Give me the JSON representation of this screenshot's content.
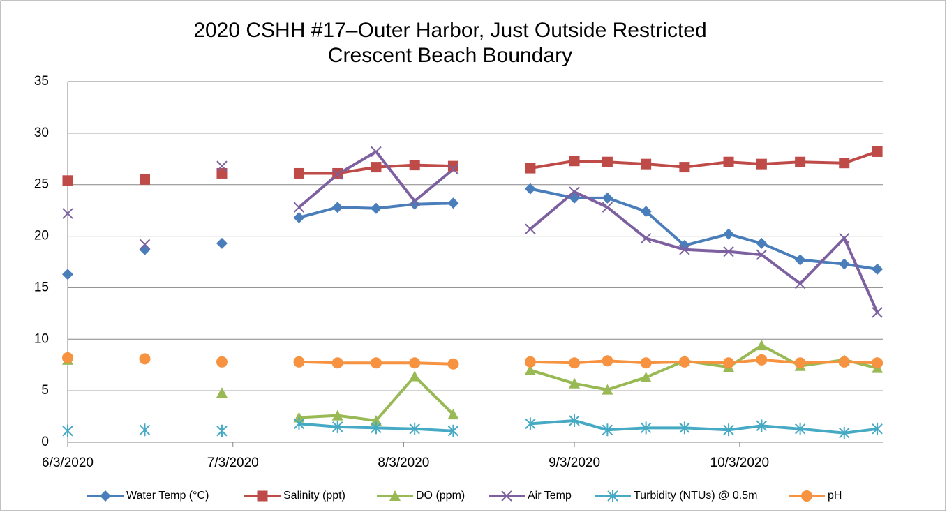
{
  "chart_data": {
    "type": "line",
    "title": [
      "2020 CSHH #17–Outer Harbor, Just Outside Restricted",
      "Crescent Beach Boundary"
    ],
    "x": [
      "2020-06-03",
      "2020-06-10",
      "2020-06-17",
      "2020-06-24",
      "2020-07-01",
      "2020-07-08",
      "2020-07-15",
      "2020-07-22",
      "2020-07-29",
      "2020-08-05",
      "2020-08-12",
      "2020-08-19",
      "2020-08-26",
      "2020-09-03",
      "2020-09-09",
      "2020-09-16",
      "2020-09-23",
      "2020-10-01",
      "2020-10-07",
      "2020-10-14",
      "2020-10-22",
      "2020-10-28"
    ],
    "xlim": [
      "2020-06-03",
      "2020-10-29"
    ],
    "xticks": [
      {
        "value": "2020-06-03",
        "label": "6/3/2020"
      },
      {
        "value": "2020-07-03",
        "label": "7/3/2020"
      },
      {
        "value": "2020-08-03",
        "label": "8/3/2020"
      },
      {
        "value": "2020-09-03",
        "label": "9/3/2020"
      },
      {
        "value": "2020-10-03",
        "label": "10/3/2020"
      }
    ],
    "ylim": [
      0,
      35
    ],
    "yticks": [
      0,
      5,
      10,
      15,
      20,
      25,
      30,
      35
    ],
    "grid": true,
    "legend": "bottom",
    "series": [
      {
        "name": "Water Temp (°C)",
        "color": "#4a7ebb",
        "marker": "diamond",
        "values": [
          16.3,
          null,
          18.7,
          null,
          19.3,
          null,
          21.8,
          22.8,
          22.7,
          23.1,
          23.2,
          null,
          24.6,
          23.7,
          23.7,
          22.4,
          19.1,
          20.2,
          19.3,
          17.7,
          17.3,
          16.8
        ]
      },
      {
        "name": "Salinity (ppt)",
        "color": "#be4b48",
        "marker": "square",
        "values": [
          25.4,
          null,
          25.5,
          null,
          26.1,
          null,
          26.1,
          26.1,
          26.7,
          26.9,
          26.8,
          null,
          26.6,
          27.3,
          27.2,
          27.0,
          26.7,
          27.2,
          27.0,
          27.2,
          27.1,
          28.2
        ]
      },
      {
        "name": "DO (ppm)",
        "color": "#98b954",
        "marker": "triangle",
        "values": [
          8.0,
          null,
          null,
          null,
          4.8,
          null,
          2.4,
          2.6,
          2.1,
          6.4,
          2.7,
          null,
          7.0,
          5.7,
          5.1,
          6.3,
          7.9,
          7.3,
          9.4,
          7.4,
          8.0,
          7.2
        ]
      },
      {
        "name": "Air Temp",
        "color": "#7d60a0",
        "marker": "x",
        "values": [
          22.2,
          null,
          19.2,
          null,
          26.8,
          null,
          22.8,
          26.0,
          28.2,
          23.4,
          26.5,
          null,
          20.7,
          24.3,
          22.8,
          19.8,
          18.7,
          18.5,
          18.2,
          15.4,
          19.8,
          12.6
        ]
      },
      {
        "name": "Turbidity (NTUs) @ 0.5m",
        "color": "#46aac5",
        "marker": "star",
        "values": [
          1.1,
          null,
          1.2,
          null,
          1.1,
          null,
          1.8,
          1.5,
          1.4,
          1.3,
          1.1,
          null,
          1.8,
          2.1,
          1.2,
          1.4,
          1.4,
          1.2,
          1.6,
          1.3,
          0.9,
          1.3
        ]
      },
      {
        "name": "pH",
        "color": "#f69240",
        "marker": "circle",
        "values": [
          8.2,
          null,
          8.1,
          null,
          7.8,
          null,
          7.8,
          7.7,
          7.7,
          7.7,
          7.6,
          null,
          7.8,
          7.7,
          7.9,
          7.7,
          7.8,
          7.7,
          8.0,
          7.7,
          7.8,
          7.7
        ]
      }
    ]
  }
}
